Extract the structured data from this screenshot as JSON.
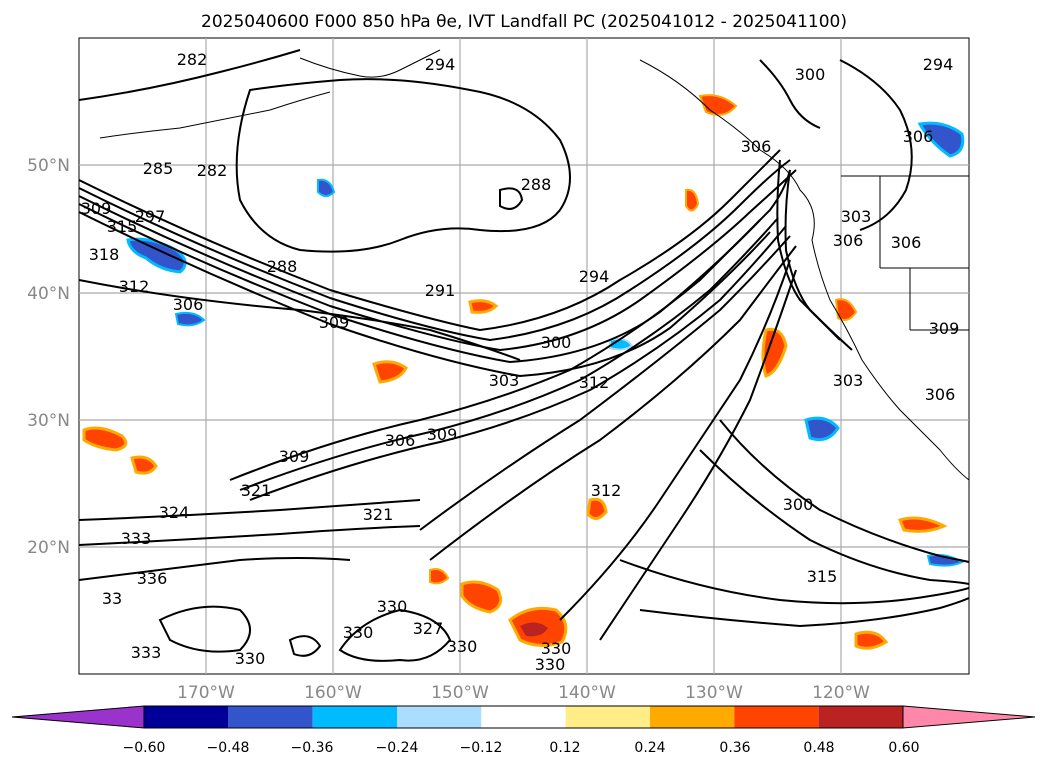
{
  "title": "2025040600 F000 850 hPa θe, IVT Landfall PC (2025041012 - 2025041100)",
  "lat_labels": [
    "50°N",
    "40°N",
    "30°N",
    "20°N"
  ],
  "lon_labels": [
    "170°W",
    "160°W",
    "150°W",
    "140°W",
    "130°W",
    "120°W"
  ],
  "contour_labels": [
    "282",
    "294",
    "306",
    "300",
    "285",
    "282",
    "288",
    "297",
    "309",
    "315",
    "318",
    "288",
    "291",
    "294",
    "312",
    "306",
    "309",
    "300",
    "303",
    "312",
    "306",
    "309",
    "309",
    "321",
    "324",
    "333",
    "321",
    "312",
    "300",
    "336",
    "33",
    "330",
    "327",
    "330",
    "330",
    "330",
    "333",
    "315",
    "330",
    "303",
    "306",
    "306",
    "306",
    "303",
    "309",
    "294",
    "306",
    "330"
  ],
  "colorbar": {
    "tick_labels": [
      "−0.60",
      "−0.48",
      "−0.36",
      "−0.24",
      "−0.12",
      "0.12",
      "0.24",
      "0.36",
      "0.48",
      "0.60"
    ],
    "colors": [
      "#9933cc",
      "#000099",
      "#3355cc",
      "#00bbff",
      "#aaddff",
      "#ffffff",
      "#ffee88",
      "#ffaa00",
      "#ff4400",
      "#bb2222",
      "#ff88aa"
    ]
  }
}
